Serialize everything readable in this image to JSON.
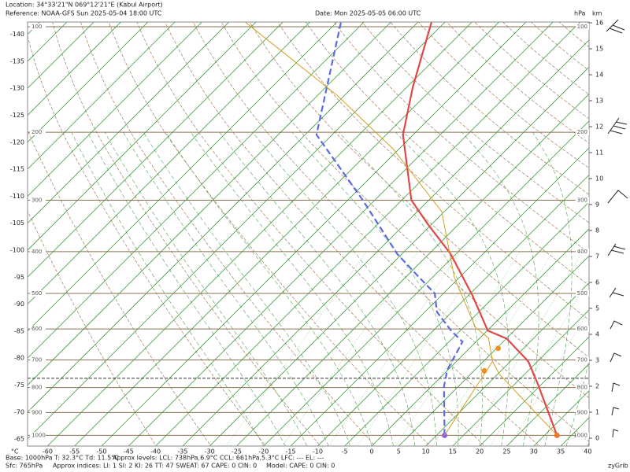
{
  "chart_data": {
    "type": "skewt",
    "location": "Location:  34°33'21\"N  069°12'21\"E (Kabul Airport)",
    "reference": "Reference: NOAA-GFS Sun 2025-05-04 18:00 UTC",
    "date": "Date: Mon 2025-05-05 06:00 UTC",
    "pressure_unit": "hPa",
    "height_unit": "km",
    "temp_unit": "°C",
    "xticks": [
      -60,
      -55,
      -50,
      -45,
      -40,
      -35,
      -30,
      -25,
      -20,
      -15,
      -10,
      -5,
      0,
      5,
      10,
      15,
      20,
      25,
      30,
      35,
      40
    ],
    "left_ticks": [
      -140,
      -135,
      -130,
      -125,
      -120,
      -115,
      -110,
      -105,
      -100,
      -95,
      -90,
      -85,
      -80,
      -75,
      -70,
      -65
    ],
    "pressure_ticks": [
      100,
      200,
      300,
      400,
      500,
      600,
      700,
      800,
      900,
      1000
    ],
    "height_ticks": [
      0,
      1,
      2,
      3,
      4,
      5,
      6,
      7,
      8,
      9,
      10,
      11,
      12,
      13,
      14,
      15,
      16
    ],
    "surface_pressure": 765,
    "series": [
      {
        "name": "Temperature",
        "color": "#e04848",
        "dashed": false,
        "pressure": [
          1000,
          790,
          705,
          630,
          605,
          505,
          405,
          345,
          300,
          203,
          152,
          100
        ],
        "values": [
          32.3,
          19.5,
          13.3,
          5.1,
          0.1,
          -9.3,
          -21,
          -30.5,
          -38.2,
          -51.9,
          -58.9,
          -68
        ]
      },
      {
        "name": "Dew point",
        "color": "#5b6be0",
        "dashed": true,
        "pressure": [
          1000,
          795,
          735,
          715,
          640,
          605,
          550,
          500,
          460,
          405,
          300,
          203,
          100
        ],
        "values": [
          11.5,
          2.3,
          -0.1,
          -0.6,
          -2.5,
          -6.7,
          -12.8,
          -16.6,
          -22.4,
          -30.9,
          -47.2,
          -67.9,
          -84.8
        ]
      },
      {
        "name": "Parcel",
        "color": "#d4a020",
        "dashed": false,
        "pressure": [
          1000,
          750,
          705,
          628,
          595,
          460,
          320,
          222,
          160,
          100
        ],
        "values": [
          32.3,
          10.3,
          6.7,
          1.6,
          -2.8,
          -15.9,
          -30.5,
          -50.9,
          -71.3,
          -103.6
        ]
      },
      {
        "name": "Mixing",
        "color": "#d4a020",
        "dashed": false,
        "pressure": [
          1000,
          705
        ],
        "values": [
          11.5,
          6.7
        ]
      }
    ],
    "levels": [
      {
        "pressure": 738,
        "temp": 6.9
      },
      {
        "pressure": 661,
        "temp": 5.3
      }
    ],
    "footer": [
      "Base: 1000hPa  T: 32.3°C  Td: 11.5°C",
      "Approx levels:  LCL: 738hPa,6.9°C   CCL: 661hPa,5.3°C   LFC: ---   EL: ---",
      "Sfc: 765hPa",
      "Approx indices:  LI: 1   SI: 2   KI: 26   TT: 47   SWEAT: 67    CAPE: 0  CIN: 0",
      "Model: CAPE: 0 CIN: 0"
    ],
    "credit": "zyGrib"
  }
}
